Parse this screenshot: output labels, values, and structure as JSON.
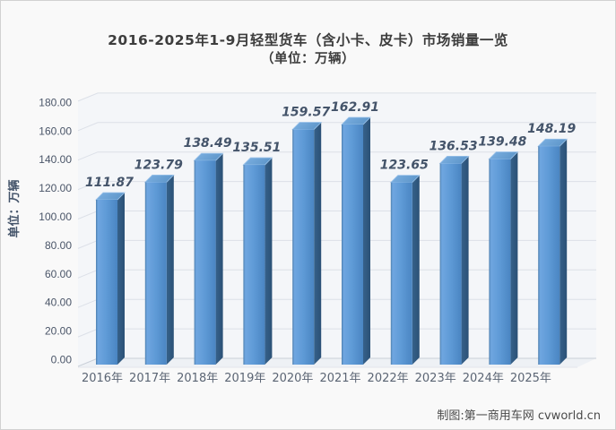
{
  "chart_data": {
    "type": "bar",
    "style": "3d-bar",
    "title": "2016-2025年1-9月轻型货车（含小卡、皮卡）市场销量一览",
    "subtitle": "（单位：万辆）",
    "ylabel": "单位：万辆",
    "xlabel": "",
    "categories": [
      "2016年",
      "2017年",
      "2018年",
      "2019年",
      "2020年",
      "2021年",
      "2022年",
      "2023年",
      "2024年",
      "2025年"
    ],
    "values": [
      111.87,
      123.79,
      138.49,
      135.51,
      159.57,
      162.91,
      123.65,
      136.53,
      139.48,
      148.19
    ],
    "value_labels": [
      "111.87",
      "123.79",
      "138.49",
      "135.51",
      "159.57",
      "162.91",
      "123.65",
      "136.53",
      "139.48",
      "148.19"
    ],
    "ylim": [
      0,
      180
    ],
    "ytick_step": 20,
    "ytick_labels": [
      "0.00",
      "20.00",
      "40.00",
      "60.00",
      "80.00",
      "100.00",
      "120.00",
      "140.00",
      "160.00",
      "180.00"
    ],
    "grid": true,
    "legend": "none",
    "colors": {
      "bar_front_edge": "#4D7FAE",
      "bar_front_light": "#6FA6E0",
      "bar_front_mid": "#5E9AD6",
      "bar_front_dark": "#4A85C2",
      "bar_side_light": "#36618A",
      "bar_side_dark": "#2B5176",
      "bar_top_light": "#7DB1E3",
      "bar_top_dark": "#5F97CA",
      "bar_top_edge": "#9CC3EA",
      "value_label": "#44546A",
      "axis_label": "#5B6574",
      "tick_label": "#4A5568",
      "gridline": "#DCE0E8",
      "baseline": "#C9CFD8",
      "floor_edge": "#E2E5EA",
      "wall_fill": "#F4F6F9"
    }
  },
  "footer": {
    "credit": "制图:第一商用车网 cvworld.cn"
  }
}
